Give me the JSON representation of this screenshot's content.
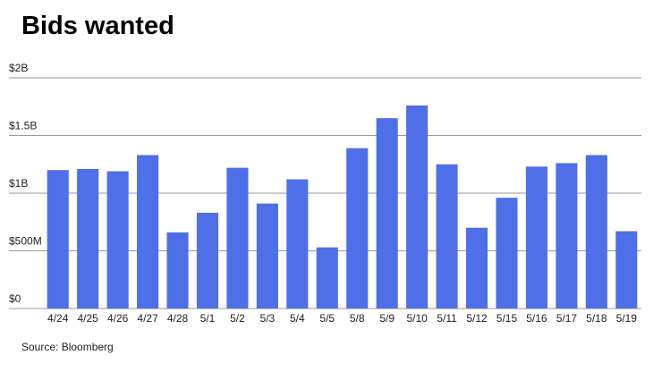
{
  "chart_data": {
    "type": "bar",
    "title": "Bids wanted",
    "source": "Source: Bloomberg",
    "categories": [
      "4/24",
      "4/25",
      "4/26",
      "4/27",
      "4/28",
      "5/1",
      "5/2",
      "5/3",
      "5/4",
      "5/5",
      "5/8",
      "5/9",
      "5/10",
      "5/11",
      "5/12",
      "5/15",
      "5/16",
      "5/17",
      "5/18",
      "5/19"
    ],
    "values": [
      1200000000,
      1210000000,
      1190000000,
      1330000000,
      660000000,
      830000000,
      1220000000,
      910000000,
      1120000000,
      530000000,
      1390000000,
      1650000000,
      1760000000,
      1250000000,
      700000000,
      960000000,
      1230000000,
      1260000000,
      1330000000,
      670000000
    ],
    "color": "#4f6fe8",
    "ylim": [
      0,
      2000000000
    ],
    "yticks": [
      {
        "value": 0,
        "label": "$0"
      },
      {
        "value": 500000000,
        "label": "$500M"
      },
      {
        "value": 1000000000,
        "label": "$1B"
      },
      {
        "value": 1500000000,
        "label": "$1.5B"
      },
      {
        "value": 2000000000,
        "label": "$2B"
      }
    ],
    "grid": true
  }
}
